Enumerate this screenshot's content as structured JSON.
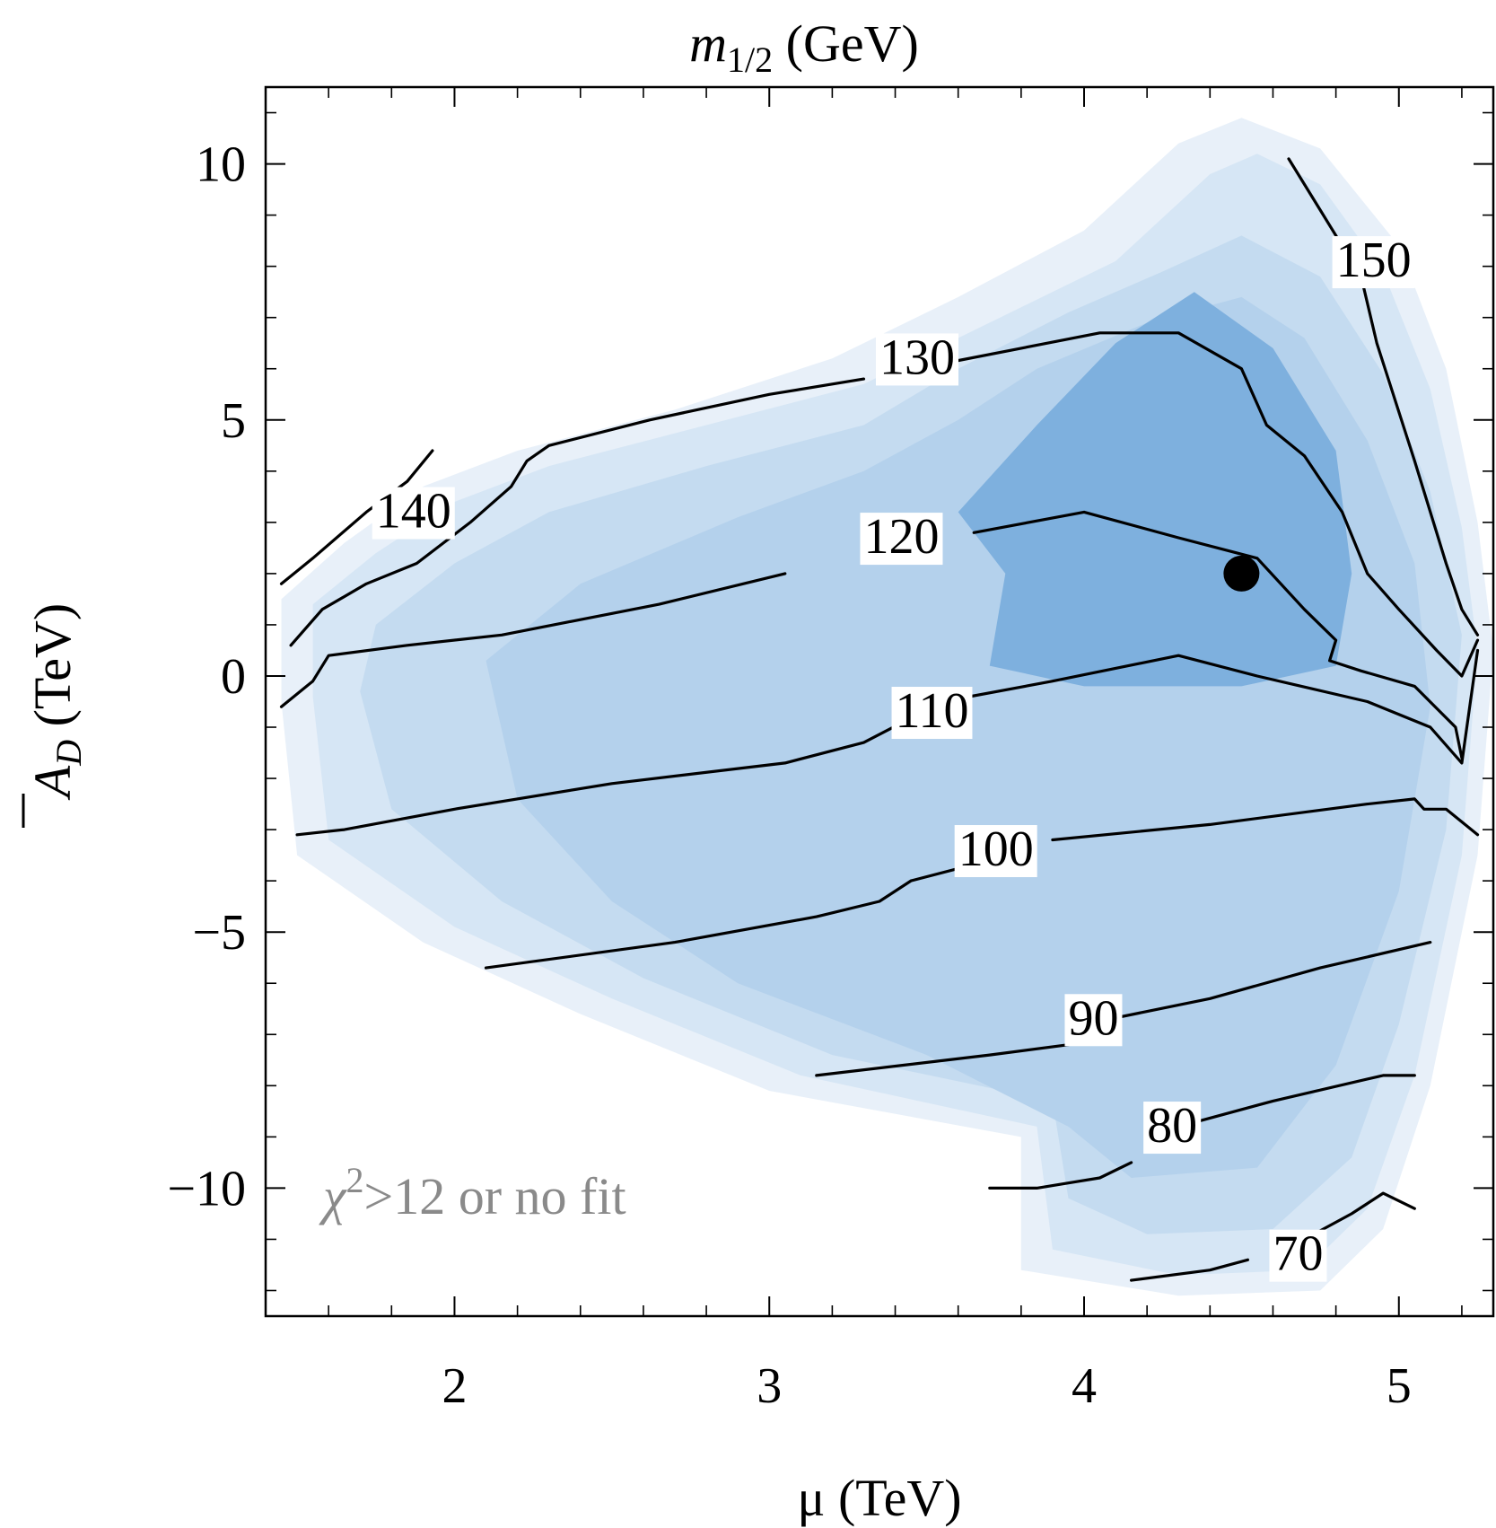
{
  "chart_data": {
    "type": "contour",
    "title": "m",
    "title_sub": "1/2",
    "title_unit": " (GeV)",
    "xlabel": "μ (TeV)",
    "ylabel_symbol": "A",
    "ylabel_sub": "D",
    "ylabel_unit": " (TeV)",
    "xlim": [
      1.4,
      5.3
    ],
    "ylim": [
      -12.5,
      11.5
    ],
    "x_ticks": [
      2,
      3,
      4,
      5
    ],
    "x_tick_labels": [
      "2",
      "3",
      "4",
      "5"
    ],
    "x_minor_ticks": [
      1.4,
      1.6,
      1.8,
      2.2,
      2.4,
      2.6,
      2.8,
      3.2,
      3.4,
      3.6,
      3.8,
      4.2,
      4.4,
      4.6,
      4.8,
      5.2
    ],
    "y_ticks": [
      10,
      5,
      0,
      -5,
      -10
    ],
    "y_tick_labels": [
      "10",
      "5",
      "0",
      "−5",
      "−10"
    ],
    "y_minor_ticks": [
      11,
      9,
      8,
      7,
      6,
      4,
      3,
      2,
      1,
      -1,
      -2,
      -3,
      -4,
      -6,
      -7,
      -8,
      -9,
      -11,
      -12
    ],
    "annotation_text": "χ",
    "annotation_sup": "2",
    "annotation_rest": ">12 or no fit",
    "best_fit_point": {
      "x": 4.5,
      "y": 2.0
    },
    "colors": {
      "band_outer": "#e8f0f9",
      "band_1": "#d6e6f5",
      "band_2": "#c4dbf0",
      "band_3": "#b4d1ec",
      "band_core": "#7eb0de",
      "contour_line": "#000000",
      "annotation": "#8a8a8a"
    },
    "regions": [
      {
        "level": "outer",
        "points": [
          [
            1.45,
            1.5
          ],
          [
            1.65,
            2.6
          ],
          [
            1.9,
            3.7
          ],
          [
            2.2,
            4.4
          ],
          [
            2.7,
            5.2
          ],
          [
            3.2,
            6.2
          ],
          [
            3.6,
            7.4
          ],
          [
            4.0,
            8.7
          ],
          [
            4.3,
            10.4
          ],
          [
            4.5,
            10.9
          ],
          [
            4.75,
            10.3
          ],
          [
            5.0,
            8.4
          ],
          [
            5.15,
            6.0
          ],
          [
            5.25,
            3.0
          ],
          [
            5.3,
            0.5
          ],
          [
            5.25,
            -3.5
          ],
          [
            5.1,
            -8.0
          ],
          [
            4.95,
            -10.8
          ],
          [
            4.75,
            -12.0
          ],
          [
            4.3,
            -12.1
          ],
          [
            3.8,
            -11.6
          ],
          [
            3.8,
            -9.0
          ],
          [
            3.0,
            -8.1
          ],
          [
            2.4,
            -6.6
          ],
          [
            1.9,
            -5.2
          ],
          [
            1.5,
            -3.5
          ],
          [
            1.45,
            -0.5
          ]
        ]
      },
      {
        "level": "1",
        "points": [
          [
            1.55,
            1.4
          ],
          [
            1.75,
            2.4
          ],
          [
            2.0,
            3.4
          ],
          [
            2.3,
            4.1
          ],
          [
            2.8,
            4.9
          ],
          [
            3.3,
            5.7
          ],
          [
            3.7,
            6.9
          ],
          [
            4.1,
            8.1
          ],
          [
            4.4,
            9.8
          ],
          [
            4.55,
            10.2
          ],
          [
            4.75,
            9.6
          ],
          [
            4.95,
            7.9
          ],
          [
            5.1,
            5.6
          ],
          [
            5.2,
            2.9
          ],
          [
            5.25,
            0.5
          ],
          [
            5.2,
            -3.5
          ],
          [
            5.05,
            -7.8
          ],
          [
            4.9,
            -10.4
          ],
          [
            4.7,
            -11.6
          ],
          [
            4.3,
            -11.7
          ],
          [
            3.9,
            -11.2
          ],
          [
            3.85,
            -8.8
          ],
          [
            3.1,
            -7.8
          ],
          [
            2.5,
            -6.3
          ],
          [
            2.0,
            -4.9
          ],
          [
            1.6,
            -3.2
          ],
          [
            1.55,
            -0.4
          ]
        ]
      },
      {
        "level": "2",
        "points": [
          [
            1.75,
            1.0
          ],
          [
            2.0,
            2.2
          ],
          [
            2.3,
            3.2
          ],
          [
            2.8,
            4.1
          ],
          [
            3.3,
            4.9
          ],
          [
            3.6,
            6.0
          ],
          [
            3.95,
            7.1
          ],
          [
            4.25,
            7.9
          ],
          [
            4.5,
            8.6
          ],
          [
            4.75,
            7.8
          ],
          [
            4.95,
            5.9
          ],
          [
            5.1,
            3.6
          ],
          [
            5.2,
            0.8
          ],
          [
            5.15,
            -3.0
          ],
          [
            5.0,
            -6.8
          ],
          [
            4.85,
            -9.4
          ],
          [
            4.6,
            -10.8
          ],
          [
            4.2,
            -10.9
          ],
          [
            3.95,
            -10.2
          ],
          [
            3.9,
            -8.3
          ],
          [
            3.2,
            -7.4
          ],
          [
            2.6,
            -5.9
          ],
          [
            2.15,
            -4.4
          ],
          [
            1.8,
            -2.6
          ],
          [
            1.7,
            -0.3
          ]
        ]
      },
      {
        "level": "3",
        "points": [
          [
            2.1,
            0.3
          ],
          [
            2.4,
            1.8
          ],
          [
            2.9,
            3.1
          ],
          [
            3.3,
            4.0
          ],
          [
            3.6,
            5.0
          ],
          [
            3.85,
            6.0
          ],
          [
            4.2,
            6.9
          ],
          [
            4.5,
            7.4
          ],
          [
            4.7,
            6.6
          ],
          [
            4.9,
            4.6
          ],
          [
            5.05,
            2.2
          ],
          [
            5.1,
            -0.6
          ],
          [
            5.0,
            -4.2
          ],
          [
            4.8,
            -7.6
          ],
          [
            4.55,
            -9.6
          ],
          [
            4.15,
            -9.8
          ],
          [
            3.95,
            -8.8
          ],
          [
            3.5,
            -7.4
          ],
          [
            2.9,
            -6.0
          ],
          [
            2.5,
            -4.4
          ],
          [
            2.2,
            -2.4
          ]
        ]
      },
      {
        "level": "core",
        "points": [
          [
            3.7,
            0.2
          ],
          [
            3.75,
            2.0
          ],
          [
            3.6,
            3.2
          ],
          [
            3.85,
            4.9
          ],
          [
            4.1,
            6.5
          ],
          [
            4.35,
            7.5
          ],
          [
            4.6,
            6.4
          ],
          [
            4.8,
            4.4
          ],
          [
            4.85,
            2.0
          ],
          [
            4.8,
            0.2
          ],
          [
            4.5,
            -0.2
          ],
          [
            4.0,
            -0.2
          ]
        ]
      }
    ],
    "contours": [
      {
        "label": "140",
        "label_x": 1.75,
        "label_y": 2.9,
        "segments": [
          [
            [
              1.45,
              1.8
            ],
            [
              1.55,
              2.3
            ],
            [
              1.72,
              3.2
            ],
            [
              1.85,
              3.8
            ],
            [
              1.93,
              4.4
            ]
          ],
          [
            [
              1.48,
              0.6
            ],
            [
              1.58,
              1.3
            ],
            [
              1.72,
              1.8
            ],
            [
              1.88,
              2.2
            ],
            [
              2.05,
              3.0
            ],
            [
              2.18,
              3.7
            ],
            [
              2.23,
              4.2
            ],
            [
              2.3,
              4.5
            ],
            [
              2.62,
              5.0
            ],
            [
              3.0,
              5.5
            ],
            [
              3.3,
              5.8
            ]
          ]
        ]
      },
      {
        "label": "130",
        "label_x": 3.35,
        "label_y": 5.9,
        "segments": [
          [
            [
              3.55,
              6.1
            ],
            [
              4.05,
              6.7
            ],
            [
              4.3,
              6.7
            ],
            [
              4.5,
              6.0
            ],
            [
              4.58,
              4.9
            ],
            [
              4.7,
              4.3
            ],
            [
              4.82,
              3.2
            ],
            [
              4.9,
              2.0
            ],
            [
              5.0,
              1.3
            ],
            [
              5.12,
              0.5
            ],
            [
              5.2,
              0.0
            ],
            [
              5.25,
              0.7
            ]
          ]
        ]
      },
      {
        "label": "120",
        "label_x": 3.3,
        "label_y": 2.4,
        "segments": [
          [
            [
              1.45,
              -0.6
            ],
            [
              1.55,
              -0.1
            ],
            [
              1.6,
              0.4
            ],
            [
              1.85,
              0.6
            ],
            [
              2.15,
              0.8
            ],
            [
              2.65,
              1.4
            ],
            [
              3.05,
              2.0
            ]
          ],
          [
            [
              3.65,
              2.8
            ],
            [
              4.0,
              3.2
            ],
            [
              4.3,
              2.7
            ],
            [
              4.55,
              2.3
            ],
            [
              4.7,
              1.3
            ],
            [
              4.8,
              0.7
            ],
            [
              4.78,
              0.3
            ],
            [
              4.88,
              0.1
            ],
            [
              5.05,
              -0.2
            ],
            [
              5.18,
              -1.0
            ],
            [
              5.2,
              -1.6
            ]
          ]
        ]
      },
      {
        "label": "110",
        "label_x": 3.4,
        "label_y": -1.0,
        "segments": [
          [
            [
              1.5,
              -3.1
            ],
            [
              1.65,
              -3.0
            ],
            [
              2.0,
              -2.6
            ],
            [
              2.5,
              -2.1
            ],
            [
              3.05,
              -1.7
            ],
            [
              3.3,
              -1.3
            ],
            [
              3.55,
              -0.5
            ],
            [
              3.9,
              -0.1
            ],
            [
              4.3,
              0.4
            ],
            [
              4.55,
              0.0
            ],
            [
              4.9,
              -0.5
            ],
            [
              5.1,
              -1.0
            ],
            [
              5.2,
              -1.7
            ],
            [
              5.25,
              0.5
            ]
          ]
        ]
      },
      {
        "label": "100",
        "label_x": 3.6,
        "label_y": -3.7,
        "segments": [
          [
            [
              2.1,
              -5.7
            ],
            [
              2.7,
              -5.2
            ],
            [
              3.15,
              -4.7
            ],
            [
              3.35,
              -4.4
            ],
            [
              3.45,
              -4.0
            ],
            [
              3.7,
              -3.6
            ]
          ],
          [
            [
              3.9,
              -3.2
            ],
            [
              4.4,
              -2.9
            ],
            [
              4.9,
              -2.5
            ],
            [
              5.05,
              -2.4
            ],
            [
              5.08,
              -2.6
            ],
            [
              5.15,
              -2.6
            ],
            [
              5.25,
              -3.1
            ]
          ]
        ]
      },
      {
        "label": "90",
        "label_x": 3.95,
        "label_y": -7.0,
        "segments": [
          [
            [
              3.15,
              -7.8
            ],
            [
              3.7,
              -7.4
            ],
            [
              3.95,
              -7.2
            ]
          ],
          [
            [
              4.0,
              -6.8
            ],
            [
              4.4,
              -6.3
            ],
            [
              4.75,
              -5.7
            ],
            [
              5.1,
              -5.2
            ]
          ]
        ]
      },
      {
        "label": "80",
        "label_x": 4.2,
        "label_y": -9.1,
        "segments": [
          [
            [
              3.7,
              -10.0
            ],
            [
              3.85,
              -10.0
            ],
            [
              3.95,
              -9.9
            ],
            [
              4.05,
              -9.8
            ],
            [
              4.15,
              -9.5
            ]
          ],
          [
            [
              4.3,
              -8.8
            ],
            [
              4.6,
              -8.3
            ],
            [
              4.95,
              -7.8
            ],
            [
              5.05,
              -7.8
            ]
          ]
        ]
      },
      {
        "label": "70",
        "label_x": 4.6,
        "label_y": -11.6,
        "segments": [
          [
            [
              4.15,
              -11.8
            ],
            [
              4.4,
              -11.6
            ],
            [
              4.52,
              -11.4
            ]
          ],
          [
            [
              4.67,
              -11.1
            ],
            [
              4.85,
              -10.5
            ],
            [
              4.95,
              -10.1
            ],
            [
              5.05,
              -10.4
            ]
          ]
        ]
      },
      {
        "label": "150",
        "label_x": 4.8,
        "label_y": 7.8,
        "segments": [
          [
            [
              4.65,
              10.1
            ],
            [
              4.75,
              9.1
            ],
            [
              4.88,
              7.8
            ],
            [
              4.93,
              6.5
            ],
            [
              5.05,
              4.2
            ],
            [
              5.15,
              2.2
            ],
            [
              5.2,
              1.3
            ],
            [
              5.25,
              0.8
            ]
          ]
        ]
      }
    ]
  }
}
